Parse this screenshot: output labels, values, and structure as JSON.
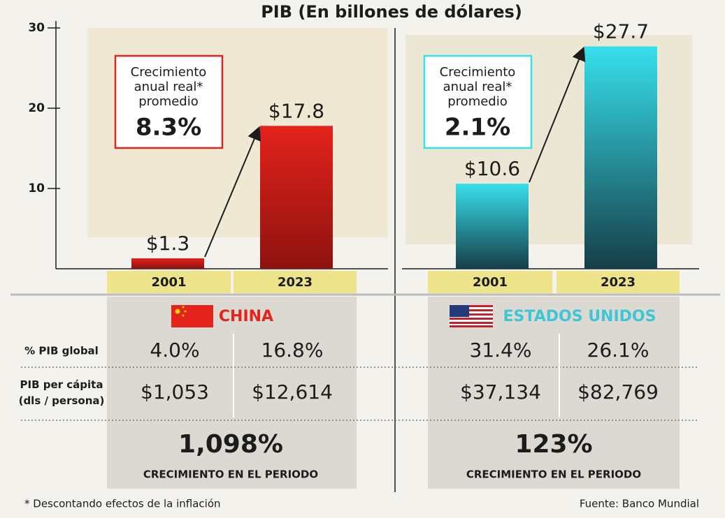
{
  "title": "PIB (En billones de dólares)",
  "chart_data": [
    {
      "type": "bar",
      "categories": [
        "2001",
        "2023"
      ],
      "values": [
        1.3,
        17.8
      ],
      "value_labels": [
        "$1.3",
        "$17.8"
      ],
      "color": "#e3231c",
      "ylim": [
        0,
        30
      ],
      "yticks": [
        10,
        20,
        30
      ],
      "callout": {
        "text": [
          "Crecimiento",
          "anual real*",
          "promedio"
        ],
        "value": "8.3%"
      }
    },
    {
      "type": "bar",
      "categories": [
        "2001",
        "2023"
      ],
      "values": [
        10.6,
        27.7
      ],
      "value_labels": [
        "$10.6",
        "$27.7"
      ],
      "color": "#36e0ec",
      "ylim": [
        0,
        30
      ],
      "callout": {
        "text": [
          "Crecimiento",
          "anual real*",
          "promedio"
        ],
        "value": "2.1%"
      }
    }
  ],
  "table": {
    "row_labels": [
      [
        "% PIB global"
      ],
      [
        "PIB per cápita",
        "(dls / persona)"
      ]
    ],
    "countries": [
      {
        "name": "CHINA",
        "cells": [
          [
            "4.0%",
            "16.8%"
          ],
          [
            "$1,053",
            "$12,614"
          ]
        ],
        "total": "1,098%",
        "total_label": "CRECIMIENTO EN EL PERIODO"
      },
      {
        "name": "ESTADOS UNIDOS",
        "cells": [
          [
            "31.4%",
            "26.1%"
          ],
          [
            "$37,134",
            "$82,769"
          ]
        ],
        "total": "123%",
        "total_label": "CRECIMIENTO EN EL PERIODO"
      }
    ]
  },
  "footnote": "* Descontando efectos de la inflación",
  "source": "Fuente: Banco Mundial"
}
